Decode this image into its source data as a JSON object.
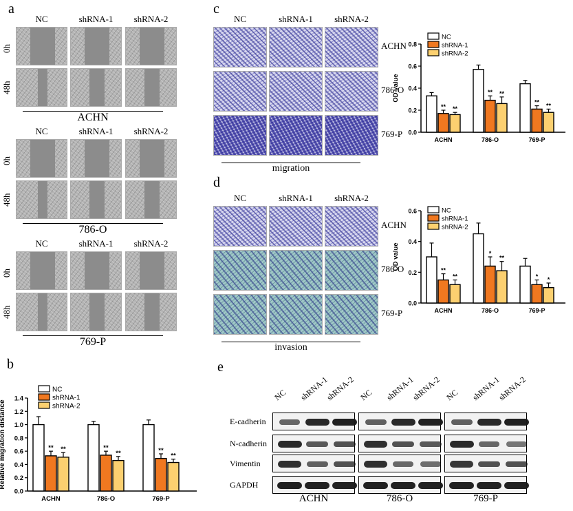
{
  "panels": {
    "a": "a",
    "b": "b",
    "c": "c",
    "d": "d",
    "e": "e"
  },
  "groups": [
    "NC",
    "shRNA-1",
    "shRNA-2"
  ],
  "timepoints": [
    "0h",
    "48h"
  ],
  "cell_lines": [
    "ACHN",
    "786-O",
    "769-P"
  ],
  "panel_c_label": "migration",
  "panel_d_label": "invasion",
  "wb_proteins": [
    "E-cadherin",
    "N-cadherin",
    "Vimentin",
    "GAPDH"
  ],
  "colors": {
    "nc": "#ffffff",
    "sh1": "#f07820",
    "sh2": "#fcd070"
  },
  "chart_data": [
    {
      "type": "bar",
      "panel": "b",
      "categories": [
        "ACHN",
        "786-O",
        "769-P"
      ],
      "series": [
        {
          "name": "NC",
          "values": [
            1.0,
            1.0,
            1.0
          ],
          "errors": [
            0.12,
            0.05,
            0.07
          ],
          "marks": [
            "",
            "",
            ""
          ]
        },
        {
          "name": "shRNA-1",
          "values": [
            0.53,
            0.54,
            0.49
          ],
          "errors": [
            0.07,
            0.06,
            0.07
          ],
          "marks": [
            "**",
            "**",
            "**"
          ]
        },
        {
          "name": "shRNA-2",
          "values": [
            0.51,
            0.46,
            0.43
          ],
          "errors": [
            0.07,
            0.06,
            0.05
          ],
          "marks": [
            "**",
            "**",
            "**"
          ]
        }
      ],
      "ylabel": "Relative migration distance",
      "ylim": [
        0,
        1.4
      ],
      "yticks": [
        "0.0",
        "0.2",
        "0.4",
        "0.6",
        "0.8",
        "1.0",
        "1.2",
        "1.4"
      ],
      "legend": "top-left"
    },
    {
      "type": "bar",
      "panel": "c",
      "categories": [
        "ACHN",
        "786-O",
        "769-P"
      ],
      "series": [
        {
          "name": "NC",
          "values": [
            0.33,
            0.57,
            0.44
          ],
          "errors": [
            0.03,
            0.04,
            0.03
          ],
          "marks": [
            "",
            "",
            ""
          ]
        },
        {
          "name": "shRNA-1",
          "values": [
            0.17,
            0.29,
            0.21
          ],
          "errors": [
            0.03,
            0.04,
            0.03
          ],
          "marks": [
            "**",
            "**",
            "**"
          ]
        },
        {
          "name": "shRNA-2",
          "values": [
            0.16,
            0.26,
            0.18
          ],
          "errors": [
            0.02,
            0.06,
            0.03
          ],
          "marks": [
            "**",
            "**",
            "**"
          ]
        }
      ],
      "ylabel": "OD value",
      "ylim": [
        0,
        0.8
      ],
      "yticks": [
        "0.0",
        "0.2",
        "0.4",
        "0.6",
        "0.8"
      ],
      "legend": "top-right"
    },
    {
      "type": "bar",
      "panel": "d",
      "categories": [
        "ACHN",
        "786-O",
        "769-P"
      ],
      "series": [
        {
          "name": "NC",
          "values": [
            0.3,
            0.45,
            0.24
          ],
          "errors": [
            0.09,
            0.07,
            0.05
          ],
          "marks": [
            "",
            "",
            ""
          ]
        },
        {
          "name": "shRNA-1",
          "values": [
            0.15,
            0.24,
            0.12
          ],
          "errors": [
            0.04,
            0.06,
            0.03
          ],
          "marks": [
            "**",
            "*",
            "*"
          ]
        },
        {
          "name": "shRNA-2",
          "values": [
            0.12,
            0.21,
            0.1
          ],
          "errors": [
            0.03,
            0.06,
            0.03
          ],
          "marks": [
            "**",
            "**",
            "*"
          ]
        }
      ],
      "ylabel": "OD value",
      "ylim": [
        0,
        0.6
      ],
      "yticks": [
        "0.0",
        "0.2",
        "0.4",
        "0.6"
      ],
      "legend": "top-right"
    }
  ]
}
